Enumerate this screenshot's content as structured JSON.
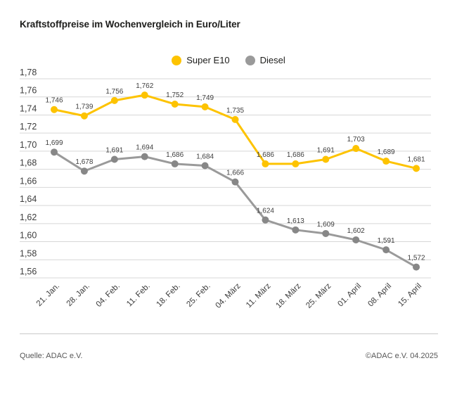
{
  "title": "Kraftstoffpreise im Wochenvergleich in Euro/Liter",
  "legend": [
    {
      "label": "Super E10",
      "color": "#fdc300"
    },
    {
      "label": "Diesel",
      "color": "#9a9a9a"
    }
  ],
  "footer": {
    "source": "Quelle: ADAC e.V.",
    "copyright": "©ADAC e.V. 04.2025"
  },
  "chart_data": {
    "type": "line",
    "title": "Kraftstoffpreise im Wochenvergleich in Euro/Liter",
    "xlabel": "",
    "ylabel": "Euro/Liter",
    "categories": [
      "21. Jan.",
      "28. Jan.",
      "04. Feb.",
      "11. Feb.",
      "18. Feb.",
      "25. Feb.",
      "04. März",
      "11. März",
      "18. März",
      "25. März",
      "01. April",
      "08. April",
      "15. April"
    ],
    "series": [
      {
        "name": "Super E10",
        "color": "#fdc300",
        "marker_color": "#fdc300",
        "values": [
          1.746,
          1.739,
          1.756,
          1.762,
          1.752,
          1.749,
          1.735,
          1.686,
          1.686,
          1.691,
          1.703,
          1.689,
          1.681
        ]
      },
      {
        "name": "Diesel",
        "color": "#9a9a9a",
        "marker_color": "#878787",
        "values": [
          1.699,
          1.678,
          1.691,
          1.694,
          1.686,
          1.684,
          1.666,
          1.624,
          1.613,
          1.609,
          1.602,
          1.591,
          1.572
        ]
      }
    ],
    "y_ticks": [
      1.78,
      1.76,
      1.74,
      1.72,
      1.7,
      1.68,
      1.66,
      1.64,
      1.62,
      1.6,
      1.58,
      1.56
    ],
    "ylim": [
      1.56,
      1.78
    ],
    "grid": true,
    "gridline_color": "#d7d7d7",
    "legend_position": "top-center",
    "value_labels": true,
    "decimal_separator": ","
  }
}
